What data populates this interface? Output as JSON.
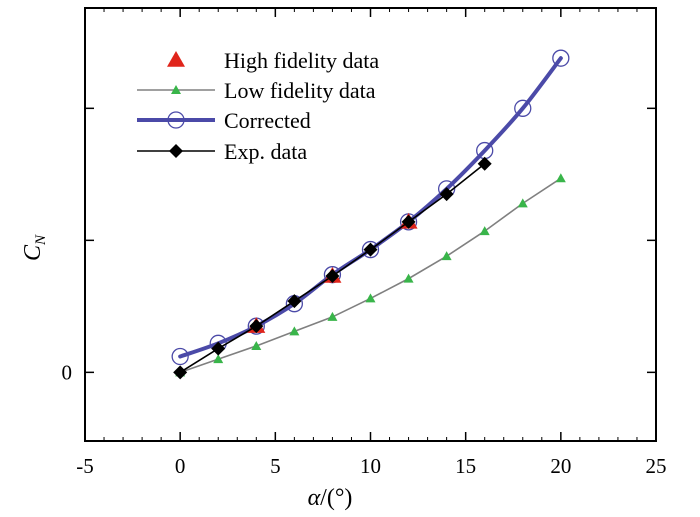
{
  "chart_data": {
    "type": "line",
    "title": "",
    "xlabel_symbol": "α",
    "xlabel_unit": "/(°)",
    "ylabel_main": "C",
    "ylabel_sub": "N",
    "xlim": [
      -5,
      25
    ],
    "ylim": [
      -0.26,
      1.38
    ],
    "xticks": [
      -5,
      0,
      5,
      10,
      15,
      20,
      25
    ],
    "yticks": [
      0,
      0.5,
      1.0
    ],
    "ytick_labels": [
      "0",
      "",
      ""
    ],
    "grid": false,
    "legend_position": "top-left",
    "series": [
      {
        "name": "High fidelity data",
        "style": "markers",
        "marker": "triangle",
        "color": "#e0251b",
        "x": [
          4,
          8,
          12
        ],
        "y": [
          0.175,
          0.365,
          0.57
        ]
      },
      {
        "name": "Low fidelity data",
        "style": "line-markers",
        "marker": "small-triangle",
        "color": "#39b54a",
        "line_color": "#808080",
        "x": [
          0,
          2,
          4,
          6,
          8,
          10,
          12,
          14,
          16,
          18,
          20
        ],
        "y": [
          0.0,
          0.05,
          0.1,
          0.155,
          0.21,
          0.28,
          0.355,
          0.44,
          0.535,
          0.64,
          0.735
        ]
      },
      {
        "name": "Corrected",
        "style": "thick-line-open-circles",
        "marker": "circle-open",
        "color": "#4b4aa8",
        "x": [
          0,
          2,
          4,
          6,
          8,
          10,
          12,
          14,
          16,
          18,
          20
        ],
        "y": [
          0.06,
          0.11,
          0.175,
          0.26,
          0.37,
          0.465,
          0.57,
          0.695,
          0.84,
          1.0,
          1.19
        ]
      },
      {
        "name": "Exp. data",
        "style": "line-markers",
        "marker": "diamond",
        "color": "#000000",
        "x": [
          0,
          2,
          4,
          6,
          8,
          10,
          12,
          14,
          16
        ],
        "y": [
          0.0,
          0.09,
          0.175,
          0.27,
          0.365,
          0.465,
          0.57,
          0.675,
          0.79
        ]
      }
    ]
  }
}
